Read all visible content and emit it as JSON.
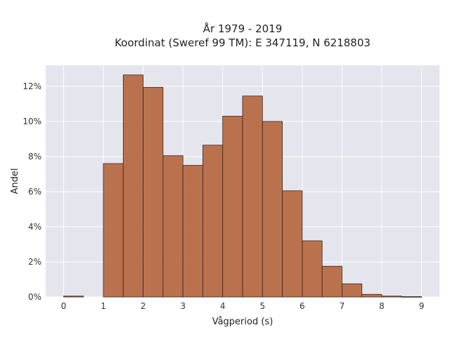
{
  "chart_data": {
    "type": "bar",
    "title_line1": "År 1979 - 2019",
    "title_line2": "Koordinat (Sweref 99 TM): E 347119, N 6218803",
    "xlabel": "Vågperiod (s)",
    "ylabel": "Andel",
    "bin_width": 0.5,
    "bins": [
      {
        "start": 0.0,
        "value": 0.05
      },
      {
        "start": 0.5,
        "value": 0.0
      },
      {
        "start": 1.0,
        "value": 7.6
      },
      {
        "start": 1.5,
        "value": 12.65
      },
      {
        "start": 2.0,
        "value": 11.95
      },
      {
        "start": 2.5,
        "value": 8.05
      },
      {
        "start": 3.0,
        "value": 7.5
      },
      {
        "start": 3.5,
        "value": 8.65
      },
      {
        "start": 4.0,
        "value": 10.3
      },
      {
        "start": 4.5,
        "value": 11.45
      },
      {
        "start": 5.0,
        "value": 10.0
      },
      {
        "start": 5.5,
        "value": 6.05
      },
      {
        "start": 6.0,
        "value": 3.2
      },
      {
        "start": 6.5,
        "value": 1.75
      },
      {
        "start": 7.0,
        "value": 0.75
      },
      {
        "start": 7.5,
        "value": 0.15
      },
      {
        "start": 8.0,
        "value": 0.05
      },
      {
        "start": 8.5,
        "value": 0.02
      }
    ],
    "xlim": [
      -0.45,
      9.45
    ],
    "ylim": [
      0,
      13.2
    ],
    "xticks": [
      0,
      1,
      2,
      3,
      4,
      5,
      6,
      7,
      8,
      9
    ],
    "xtick_labels": [
      "0",
      "1",
      "2",
      "3",
      "4",
      "5",
      "6",
      "7",
      "8",
      "9"
    ],
    "yticks": [
      0,
      2,
      4,
      6,
      8,
      10,
      12
    ],
    "ytick_labels": [
      "0%",
      "2%",
      "4%",
      "6%",
      "8%",
      "10%",
      "12%"
    ],
    "grid": true,
    "colors": {
      "bar_fill": "#b5653c",
      "bar_stroke": "#3a2418",
      "plot_bg": "#e5e5ee",
      "grid": "#ffffff"
    }
  }
}
